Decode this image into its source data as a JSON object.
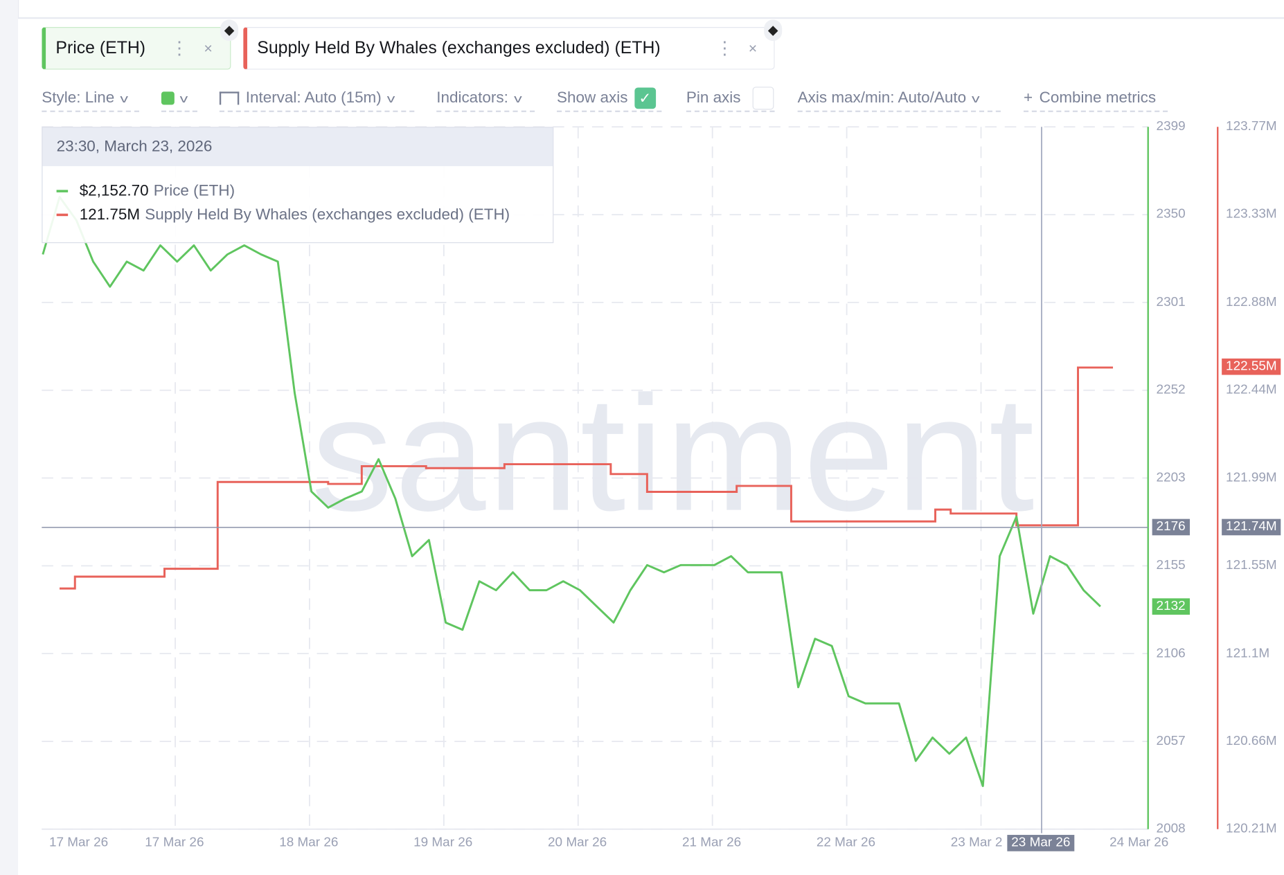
{
  "metrics": [
    {
      "label": "Price (ETH)",
      "color": "#5fc55f",
      "icon": "ethereum-icon"
    },
    {
      "label": "Supply Held By Whales (exchanges excluded) (ETH)",
      "color": "#e8625a",
      "icon": "ethereum-icon"
    }
  ],
  "toolbar": {
    "style": "Style: Line",
    "interval": "Interval: Auto (15m)",
    "indicators": "Indicators:",
    "show_axis": "Show axis",
    "show_axis_checked": true,
    "pin_axis": "Pin axis",
    "pin_axis_checked": false,
    "axis_maxmin": "Axis max/min: Auto/Auto",
    "combine": "Combine metrics",
    "line_color": "#5fc55f"
  },
  "tooltip": {
    "date": "23:30, March 23, 2026",
    "rows": [
      {
        "value": "$2,152.70",
        "name": "Price (ETH)"
      },
      {
        "value": "121.75M",
        "name": "Supply Held By Whales (exchanges excluded) (ETH)"
      }
    ]
  },
  "watermark": "santiment",
  "chart_data": {
    "type": "line",
    "x_ticks": [
      "17 Mar 26",
      "17 Mar 26",
      "18 Mar 26",
      "19 Mar 26",
      "20 Mar 26",
      "21 Mar 26",
      "22 Mar 26",
      "23 Mar 2",
      "24 Mar 26"
    ],
    "crosshair": {
      "x_label": "23 Mar 26",
      "price_label": "2176",
      "whale_label": "121.74M",
      "time": "2026-03-23 23:30"
    },
    "price_axis": {
      "ticks": [
        "2399",
        "2350",
        "2301",
        "2252",
        "2203",
        "2155",
        "2106",
        "2057",
        "2008"
      ],
      "range": [
        2008,
        2399
      ],
      "last_value_label": "2132",
      "color": "#5fc55f"
    },
    "whale_axis": {
      "ticks": [
        "123.77M",
        "123.33M",
        "122.88M",
        "122.44M",
        "121.99M",
        "121.55M",
        "121.1M",
        "120.66M",
        "120.21M"
      ],
      "range": [
        120.21,
        123.77
      ],
      "last_value_label": "122.55M",
      "color": "#e8625a"
    },
    "grid": true,
    "series": [
      {
        "name": "Price (ETH)",
        "color": "#5fc55f",
        "start": "2026-03-16 13:00",
        "interval_hours": 3,
        "values": [
          2328,
          2360,
          2347,
          2324,
          2310,
          2324,
          2319,
          2333,
          2324,
          2333,
          2319,
          2328,
          2333,
          2328,
          2324,
          2251,
          2196,
          2187,
          2192,
          2196,
          2214,
          2192,
          2160,
          2169,
          2123,
          2119,
          2146,
          2141,
          2151,
          2141,
          2141,
          2146,
          2141,
          2132,
          2123,
          2141,
          2155,
          2151,
          2155,
          2155,
          2155,
          2160,
          2151,
          2151,
          2151,
          2087,
          2114,
          2110,
          2082,
          2078,
          2078,
          2078,
          2046,
          2059,
          2050,
          2059,
          2032,
          2160,
          2182,
          2128,
          2160,
          2155,
          2141,
          2132
        ]
      },
      {
        "name": "Supply Held By Whales (exchanges excluded) (ETH)",
        "color": "#e8625a",
        "step": true,
        "unit": "M",
        "points": [
          [
            "2026-03-16 16:00",
            121.43
          ],
          [
            "2026-03-16 18:45",
            121.49
          ],
          [
            "2026-03-17 10:45",
            121.53
          ],
          [
            "2026-03-17 20:15",
            121.97
          ],
          [
            "2026-03-18 16:00",
            121.96
          ],
          [
            "2026-03-18 22:00",
            122.05
          ],
          [
            "2026-03-19 09:30",
            122.04
          ],
          [
            "2026-03-19 23:30",
            122.06
          ],
          [
            "2026-03-20 18:30",
            122.01
          ],
          [
            "2026-03-21 01:00",
            121.92
          ],
          [
            "2026-03-21 17:00",
            121.95
          ],
          [
            "2026-03-22 02:45",
            121.77
          ],
          [
            "2026-03-23 04:30",
            121.83
          ],
          [
            "2026-03-23 07:15",
            121.81
          ],
          [
            "2026-03-23 19:00",
            121.75
          ],
          [
            "2026-03-24 06:00",
            122.55
          ],
          [
            "2026-03-24 12:15",
            122.55
          ]
        ]
      }
    ]
  }
}
